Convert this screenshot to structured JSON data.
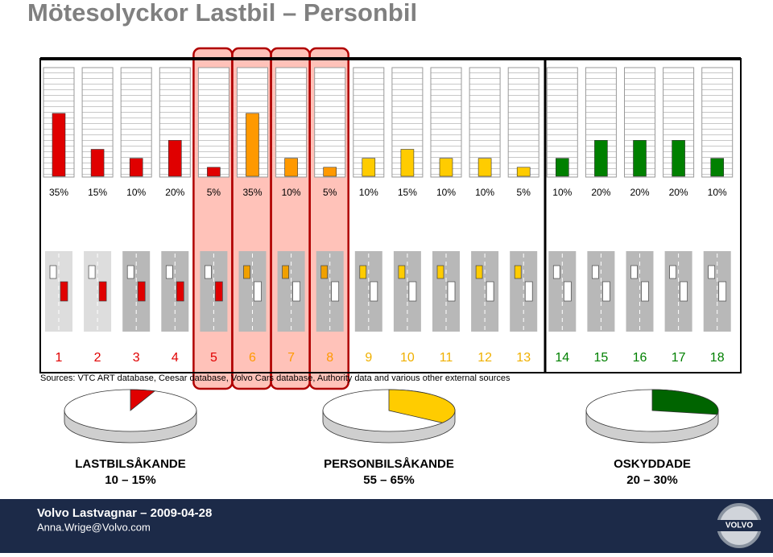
{
  "title": "Mötesolyckor Lastbil – Personbil",
  "chart_data": [
    {
      "type": "bar",
      "categories": [
        "1",
        "2",
        "3",
        "4",
        "5",
        "6",
        "7",
        "8",
        "9",
        "10",
        "11",
        "12",
        "13",
        "14",
        "15",
        "16",
        "17",
        "18"
      ],
      "values": [
        35,
        15,
        10,
        20,
        5,
        35,
        10,
        5,
        10,
        15,
        10,
        10,
        5,
        10,
        20,
        20,
        20,
        10
      ],
      "value_labels": [
        "35%",
        "15%",
        "10%",
        "20%",
        "5%",
        "35%",
        "10%",
        "5%",
        "10%",
        "15%",
        "10%",
        "10%",
        "5%",
        "10%",
        "20%",
        "20%",
        "20%",
        "10%"
      ],
      "colors": [
        "#e00000",
        "#e00000",
        "#e00000",
        "#e00000",
        "#e00000",
        "#ff9900",
        "#ff9900",
        "#ff9900",
        "#ffcc00",
        "#ffcc00",
        "#ffcc00",
        "#ffcc00",
        "#ffcc00",
        "#008000",
        "#008000",
        "#008000",
        "#008000",
        "#008000"
      ],
      "label_colors": [
        "#e00000",
        "#e00000",
        "#e00000",
        "#e00000",
        "#e00000",
        "#ff9900",
        "#ff9900",
        "#ff9900",
        "#f0b000",
        "#f0b000",
        "#f0b000",
        "#f0b000",
        "#f0b000",
        "#008000",
        "#008000",
        "#008000",
        "#008000",
        "#008000"
      ],
      "ylim": [
        0,
        60
      ]
    },
    {
      "type": "pie",
      "title": "LASTBILSÅKANDE",
      "subtitle": "10 – 15%",
      "values": [
        6
      ],
      "color": "#e00000",
      "side_color": "#8b0000"
    },
    {
      "type": "pie",
      "title": "PERSONBILSÅKANDE",
      "subtitle": "55 – 65%",
      "values": [
        35
      ],
      "color": "#ffcc00",
      "side_color": "#7a6000"
    },
    {
      "type": "pie",
      "title": "OSKYDDADE",
      "subtitle": "20 – 30%",
      "values": [
        28
      ],
      "color": "#006400",
      "side_color": "#003300"
    }
  ],
  "sources": "Sources: VTC ART database, Ceesar database, Volvo Cars database, Authority data and various other external sources",
  "footer": {
    "line1": "Volvo Lastvagnar – 2009-04-28",
    "line2": "Anna.Wrige@Volvo.com",
    "logo": "VOLVO"
  }
}
